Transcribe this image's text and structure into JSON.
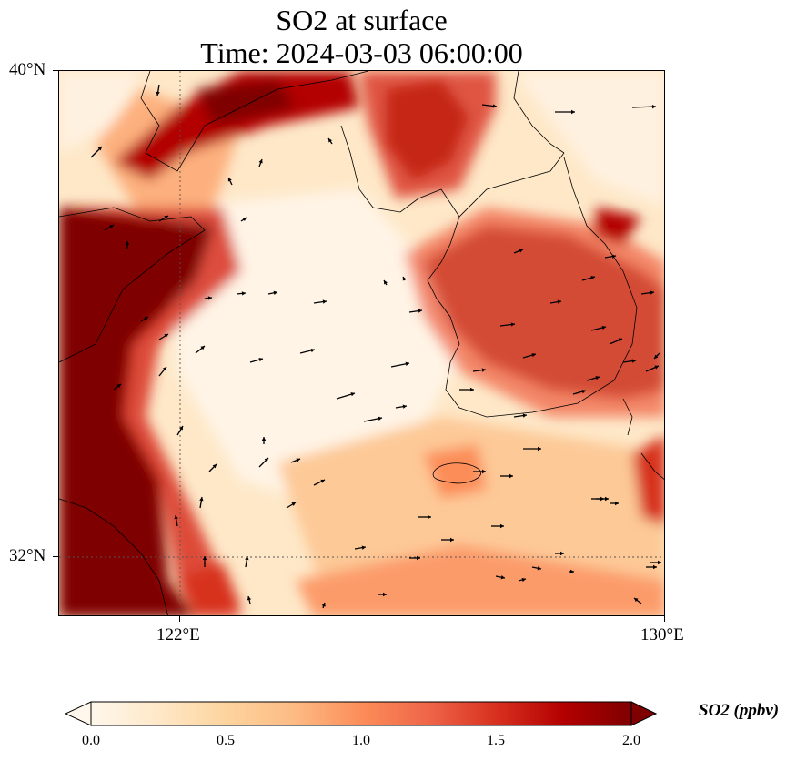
{
  "title": {
    "line1": "SO2 at surface",
    "line2": "Time: 2024-03-03 06:00:00"
  },
  "map": {
    "lon_range": [
      119.5,
      130.0
    ],
    "lat_range": [
      31.0,
      40.0
    ],
    "lon_ticks": [
      {
        "value": 122,
        "label": "122°E"
      },
      {
        "value": 130,
        "label": "130°E"
      }
    ],
    "lat_ticks": [
      {
        "value": 40,
        "label": "40°N"
      },
      {
        "value": 32,
        "label": "32°N"
      }
    ],
    "gridlines": "dotted",
    "variable": "SO2",
    "vectors": "wind"
  },
  "colorbar": {
    "label": "SO2 (ppbv)",
    "ticks": [
      "0.0",
      "0.5",
      "1.0",
      "1.5",
      "2.0"
    ],
    "range": [
      0.0,
      2.0
    ],
    "extend": "both",
    "colormap": "OrRd",
    "colors": [
      "#fff7ec",
      "#fee8c8",
      "#fdd49e",
      "#fdbb84",
      "#fc8d59",
      "#ef6548",
      "#d7301f",
      "#b30000",
      "#7f0000"
    ]
  }
}
